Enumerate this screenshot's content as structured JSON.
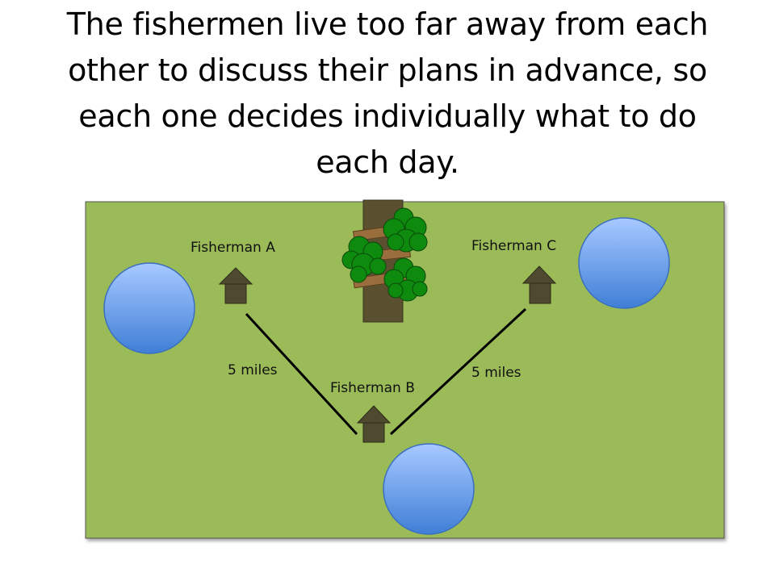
{
  "title": {
    "lines": [
      "The fishermen live too far away from each",
      "other to discuss their plans in advance, so",
      "each one decides individually what to do",
      "each day."
    ]
  },
  "fishermen": [
    {
      "id": "a",
      "label": "Fisherman A"
    },
    {
      "id": "b",
      "label": "Fisherman B"
    },
    {
      "id": "c",
      "label": "Fisherman C"
    }
  ],
  "distances": [
    {
      "from": "A",
      "to": "B",
      "label": "5 miles"
    },
    {
      "from": "B",
      "to": "C",
      "label": "5 miles"
    }
  ],
  "colors": {
    "field": "#9bbb59",
    "field_border": "#555555",
    "house": "#4e4a30",
    "trunk": "#5a5030",
    "plank": "#9a6e3c",
    "tree_green": "#0e8a0e",
    "pond_top": "#a8c9ff",
    "pond_bottom": "#3f7fd6",
    "path_line": "#000000"
  }
}
